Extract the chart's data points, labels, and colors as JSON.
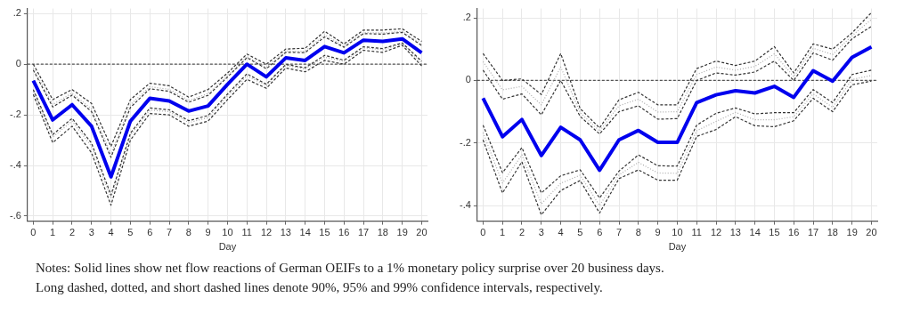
{
  "chart_data": [
    {
      "type": "line",
      "xlabel": "Day",
      "x": [
        0,
        1,
        2,
        3,
        4,
        5,
        6,
        7,
        8,
        9,
        10,
        11,
        12,
        13,
        14,
        15,
        16,
        17,
        18,
        19,
        20
      ],
      "xlim": [
        -0.3,
        20.3
      ],
      "xticks": [
        0,
        1,
        2,
        3,
        4,
        5,
        6,
        7,
        8,
        9,
        10,
        11,
        12,
        13,
        14,
        15,
        16,
        17,
        18,
        19,
        20
      ],
      "ylim": [
        -0.62,
        0.22
      ],
      "yticks": [
        {
          "value": -0.6,
          "label": "-.6"
        },
        {
          "value": -0.4,
          "label": "-.4"
        },
        {
          "value": -0.2,
          "label": "-.2"
        },
        {
          "value": 0,
          "label": "0"
        },
        {
          "value": 0.2,
          "label": ".2"
        }
      ],
      "grid": true,
      "legend": false,
      "marker": "none",
      "ref_lines": [
        {
          "axis": "y",
          "value": 0,
          "color": "#555555",
          "line_style": "dashed"
        }
      ],
      "annotations": [
        "Notes: Solid lines show net flow reactions of German OEIFs to a 1% monetary policy surprise over 20 business days.",
        "Long dashed, dotted, and short dashed lines denote 90%, 95% and 99% confidence intervals, respectively."
      ],
      "series": [
        {
          "color": "#333333",
          "line_style": "dashed",
          "values": [
            0,
            -0.14,
            -0.1,
            -0.155,
            -0.325,
            -0.14,
            -0.075,
            -0.085,
            -0.13,
            -0.1,
            -0.035,
            0.04,
            0,
            0.06,
            0.063,
            0.13,
            0.08,
            0.135,
            0.135,
            0.14,
            0.09
          ]
        },
        {
          "color": "#aaaaaa",
          "line_style": "dotted",
          "values": [
            -0.016,
            -0.159,
            -0.114,
            -0.177,
            -0.354,
            -0.16,
            -0.089,
            -0.099,
            -0.143,
            -0.116,
            -0.046,
            0.03,
            -0.012,
            0.052,
            0.051,
            0.116,
            0.072,
            0.125,
            0.124,
            0.13,
            0.079
          ]
        },
        {
          "color": "#333333",
          "line_style": "dashed",
          "values": [
            -0.023,
            -0.169,
            -0.122,
            -0.187,
            -0.368,
            -0.171,
            -0.097,
            -0.107,
            -0.15,
            -0.123,
            -0.051,
            0.026,
            -0.018,
            0.047,
            0.046,
            0.108,
            0.067,
            0.121,
            0.119,
            0.126,
            0.074
          ]
        },
        {
          "color": "#333333",
          "line_style": "dashed",
          "values": [
            -0.1,
            -0.278,
            -0.214,
            -0.312,
            -0.517,
            -0.273,
            -0.173,
            -0.18,
            -0.223,
            -0.203,
            -0.118,
            -0.038,
            -0.079,
            -0.001,
            -0.014,
            0.035,
            0.016,
            0.069,
            0.062,
            0.084,
            0.012
          ]
        },
        {
          "color": "#aaaaaa",
          "line_style": "dotted",
          "values": [
            -0.107,
            -0.288,
            -0.225,
            -0.325,
            -0.53,
            -0.282,
            -0.181,
            -0.187,
            -0.231,
            -0.211,
            -0.126,
            -0.046,
            -0.084,
            -0.005,
            -0.019,
            0.028,
            0.011,
            0.065,
            0.057,
            0.081,
            0.005
          ]
        },
        {
          "color": "#333333",
          "line_style": "dashed",
          "values": [
            -0.12,
            -0.31,
            -0.245,
            -0.35,
            -0.557,
            -0.3,
            -0.195,
            -0.2,
            -0.245,
            -0.225,
            -0.14,
            -0.06,
            -0.095,
            -0.015,
            -0.03,
            0.015,
            0,
            0.055,
            0.047,
            0.075,
            -0.007
          ]
        },
        {
          "color": "#0000ee",
          "line_style": "solid",
          "values": [
            -0.065,
            -0.22,
            -0.16,
            -0.245,
            -0.445,
            -0.225,
            -0.135,
            -0.145,
            -0.185,
            -0.165,
            -0.08,
            0,
            -0.05,
            0.025,
            0.015,
            0.07,
            0.045,
            0.095,
            0.09,
            0.1,
            0.045
          ]
        }
      ]
    },
    {
      "type": "line",
      "xlabel": "Day",
      "x": [
        0,
        1,
        2,
        3,
        4,
        5,
        6,
        7,
        8,
        9,
        10,
        11,
        12,
        13,
        14,
        15,
        16,
        17,
        18,
        19,
        20
      ],
      "xlim": [
        -0.3,
        20.3
      ],
      "xticks": [
        0,
        1,
        2,
        3,
        4,
        5,
        6,
        7,
        8,
        9,
        10,
        11,
        12,
        13,
        14,
        15,
        16,
        17,
        18,
        19,
        20
      ],
      "ylim": [
        -0.45,
        0.23
      ],
      "yticks": [
        {
          "value": -0.4,
          "label": "-.4"
        },
        {
          "value": -0.2,
          "label": "-.2"
        },
        {
          "value": 0,
          "label": "0"
        },
        {
          "value": 0.2,
          "label": ".2"
        }
      ],
      "grid": true,
      "legend": false,
      "marker": "none",
      "ref_lines": [
        {
          "axis": "y",
          "value": 0,
          "color": "#555555",
          "line_style": "dashed"
        }
      ],
      "series": [
        {
          "color": "#333333",
          "line_style": "dashed",
          "values": [
            0.086,
            0,
            0.005,
            -0.045,
            0.086,
            -0.09,
            -0.152,
            -0.062,
            -0.038,
            -0.078,
            -0.078,
            0.038,
            0.062,
            0.048,
            0.062,
            0.108,
            0.024,
            0.117,
            0.1,
            0.152,
            0.217
          ]
        },
        {
          "color": "#aaaaaa",
          "line_style": "dotted",
          "values": [
            0.06,
            -0.03,
            -0.019,
            -0.078,
            0.043,
            -0.103,
            -0.162,
            -0.081,
            -0.06,
            -0.101,
            -0.1,
            0.019,
            0.043,
            0.033,
            0.045,
            0.085,
            0.012,
            0.103,
            0.083,
            0.143,
            0.195
          ]
        },
        {
          "color": "#333333",
          "line_style": "dashed",
          "values": [
            0.033,
            -0.06,
            -0.043,
            -0.11,
            0,
            -0.115,
            -0.171,
            -0.1,
            -0.081,
            -0.124,
            -0.122,
            0,
            0.024,
            0.017,
            0.027,
            0.062,
            0,
            0.088,
            0.065,
            0.133,
            0.173
          ]
        },
        {
          "color": "#333333",
          "line_style": "dashed",
          "values": [
            -0.143,
            -0.295,
            -0.215,
            -0.36,
            -0.305,
            -0.286,
            -0.376,
            -0.29,
            -0.238,
            -0.273,
            -0.274,
            -0.143,
            -0.105,
            -0.088,
            -0.107,
            -0.103,
            -0.103,
            -0.029,
            -0.071,
            0.019,
            0.033
          ]
        },
        {
          "color": "#aaaaaa",
          "line_style": "dotted",
          "values": [
            -0.167,
            -0.328,
            -0.238,
            -0.395,
            -0.329,
            -0.303,
            -0.4,
            -0.302,
            -0.262,
            -0.296,
            -0.297,
            -0.161,
            -0.131,
            -0.102,
            -0.126,
            -0.126,
            -0.116,
            -0.043,
            -0.086,
            0.003,
            0.016
          ]
        },
        {
          "color": "#333333",
          "line_style": "dashed",
          "values": [
            -0.19,
            -0.36,
            -0.26,
            -0.43,
            -0.352,
            -0.32,
            -0.424,
            -0.314,
            -0.286,
            -0.319,
            -0.319,
            -0.179,
            -0.157,
            -0.116,
            -0.145,
            -0.148,
            -0.129,
            -0.057,
            -0.1,
            -0.014,
            -0.002
          ]
        },
        {
          "color": "#0000ee",
          "line_style": "solid",
          "values": [
            -0.057,
            -0.18,
            -0.125,
            -0.24,
            -0.15,
            -0.19,
            -0.287,
            -0.19,
            -0.16,
            -0.198,
            -0.198,
            -0.071,
            -0.046,
            -0.033,
            -0.04,
            -0.019,
            -0.054,
            0.031,
            -0.002,
            0.074,
            0.107
          ]
        }
      ]
    }
  ]
}
